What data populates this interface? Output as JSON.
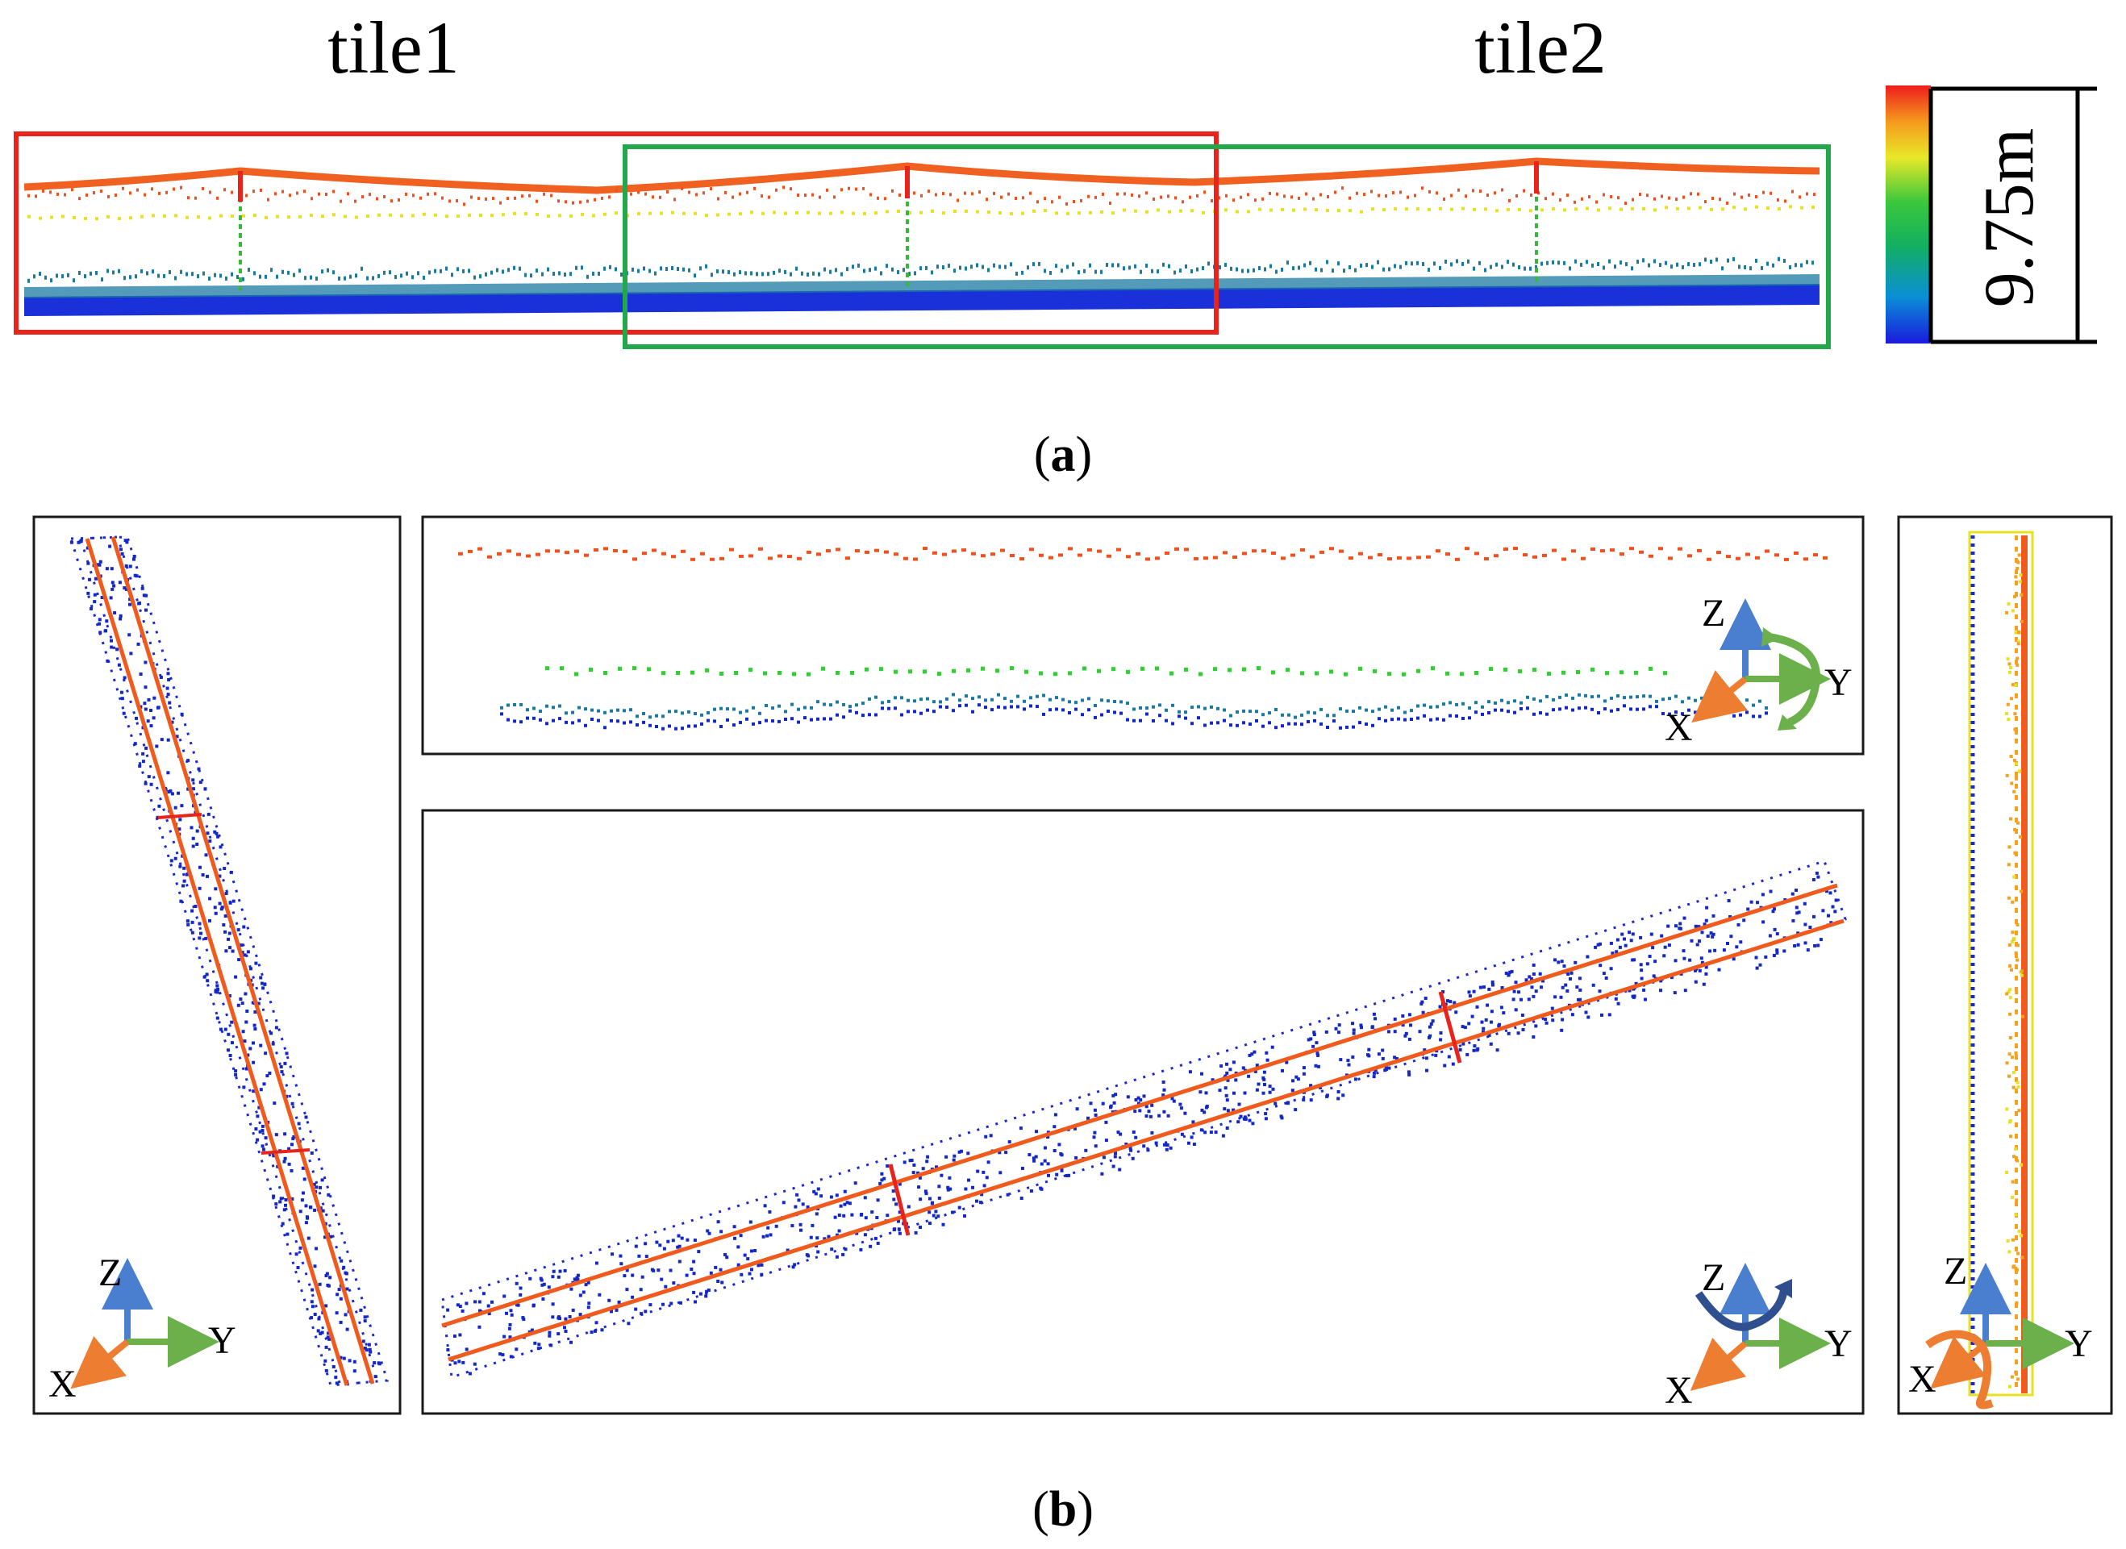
{
  "panel_a": {
    "tile1_label": "tile1",
    "tile2_label": "tile2",
    "scale_label": "9.75m",
    "caption": {
      "open": "(",
      "letter": "a",
      "close": ")"
    },
    "tile1_color": "#e8231c",
    "tile2_color": "#22a84a"
  },
  "panel_b": {
    "caption": {
      "open": "(",
      "letter": "b",
      "close": ")"
    },
    "views": [
      {
        "id": "left-view",
        "axes": {
          "z": "Z",
          "y": "Y",
          "x": "X"
        }
      },
      {
        "id": "side-view",
        "axes": {
          "z": "Z",
          "y": "Y",
          "x": "X"
        }
      },
      {
        "id": "top-view",
        "axes": {
          "z": "Z",
          "y": "Y",
          "x": "X"
        }
      },
      {
        "id": "end-view",
        "axes": {
          "z": "Z",
          "y": "Y",
          "x": "X"
        }
      }
    ]
  },
  "colors": {
    "axis_z": "#4a7fcf",
    "axis_y": "#6bb04a",
    "axis_x": "#ed7d31",
    "point_high": "#f0501e",
    "point_mid": "#e8e020",
    "point_low": "#1428c8",
    "point_ground": "#1a7aa0"
  }
}
